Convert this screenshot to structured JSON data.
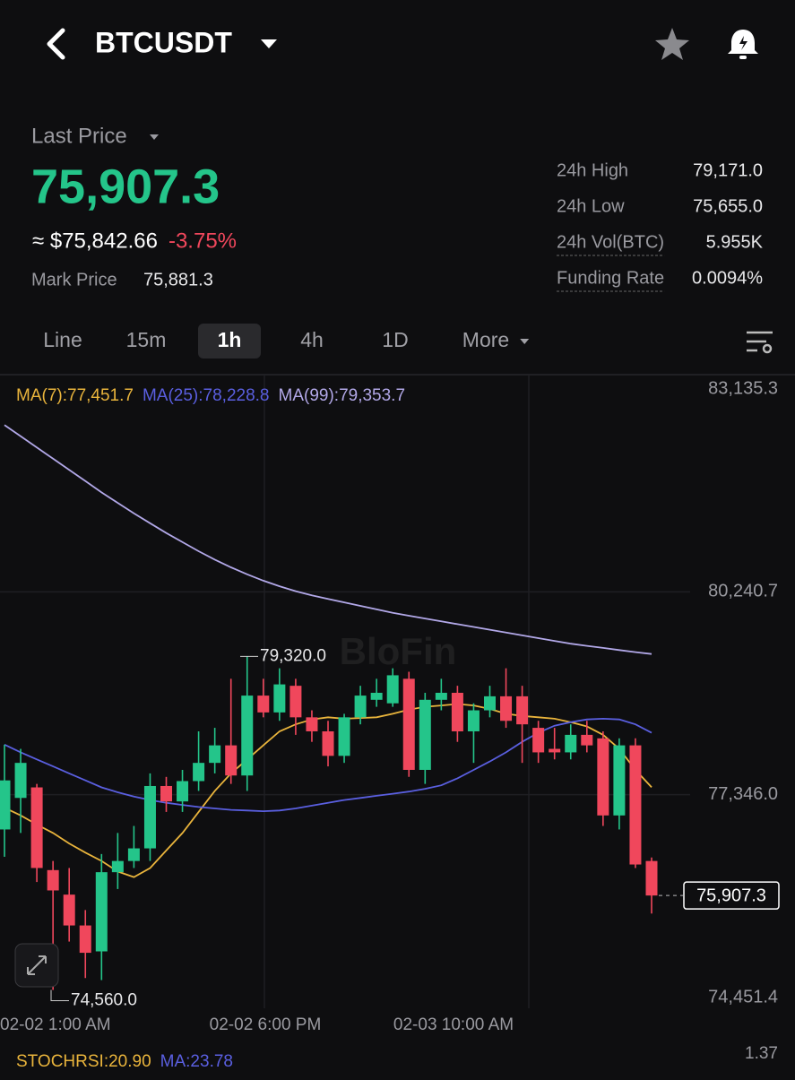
{
  "header": {
    "symbol": "BTCUSDT"
  },
  "price_panel": {
    "last_price_label": "Last Price",
    "last_price": "75,907.3",
    "usd_price": "≈ $75,842.66",
    "change": "-3.75%",
    "mark_price_label": "Mark Price",
    "mark_price": "75,881.3",
    "stats": [
      {
        "label": "24h High",
        "value": "79,171.0"
      },
      {
        "label": "24h Low",
        "value": "75,655.0"
      },
      {
        "label": "24h Vol(BTC)",
        "value": "5.955K"
      },
      {
        "label": "Funding Rate",
        "value": "0.0094%"
      }
    ]
  },
  "tabs": [
    {
      "label": "Line"
    },
    {
      "label": "15m"
    },
    {
      "label": "1h",
      "selected": true
    },
    {
      "label": "4h"
    },
    {
      "label": "1D"
    },
    {
      "label": "More"
    }
  ],
  "chart_data": {
    "type": "candlestick",
    "watermark": "BloFin",
    "up_color": "#24c58a",
    "down_color": "#f0475c",
    "ylim": [
      74451.4,
      83135.3
    ],
    "yticks": [
      {
        "value": 83135.3,
        "label": "83,135.3"
      },
      {
        "value": 80240.7,
        "label": "80,240.7"
      },
      {
        "value": 77346.0,
        "label": "77,346.0"
      },
      {
        "value": 74451.4,
        "label": "74,451.4"
      }
    ],
    "x_labels": [
      "02-02 1:00 AM",
      "02-02 6:00 PM",
      "02-03 10:00 AM"
    ],
    "candles": [
      {
        "open": 76850,
        "high": 78060,
        "low": 76460,
        "close": 77550
      },
      {
        "open": 77300,
        "high": 78000,
        "low": 76800,
        "close": 77800
      },
      {
        "open": 77450,
        "high": 77500,
        "low": 76100,
        "close": 76300
      },
      {
        "open": 76270,
        "high": 76400,
        "low": 74560,
        "close": 75980
      },
      {
        "open": 75920,
        "high": 76300,
        "low": 75250,
        "close": 75480
      },
      {
        "open": 75480,
        "high": 75700,
        "low": 74730,
        "close": 75090
      },
      {
        "open": 75110,
        "high": 76500,
        "low": 74700,
        "close": 76240
      },
      {
        "open": 76240,
        "high": 76800,
        "low": 76000,
        "close": 76400
      },
      {
        "open": 76400,
        "high": 76900,
        "low": 76300,
        "close": 76580
      },
      {
        "open": 76580,
        "high": 77650,
        "low": 76400,
        "close": 77470
      },
      {
        "open": 77470,
        "high": 77600,
        "low": 77100,
        "close": 77250
      },
      {
        "open": 77250,
        "high": 77700,
        "low": 77100,
        "close": 77540
      },
      {
        "open": 77540,
        "high": 78250,
        "low": 77400,
        "close": 77800
      },
      {
        "open": 77800,
        "high": 78300,
        "low": 77650,
        "close": 78050
      },
      {
        "open": 78050,
        "high": 79000,
        "low": 77500,
        "close": 77620
      },
      {
        "open": 77620,
        "high": 79320,
        "low": 77400,
        "close": 78760
      },
      {
        "open": 78760,
        "high": 79000,
        "low": 78450,
        "close": 78520
      },
      {
        "open": 78520,
        "high": 79150,
        "low": 78400,
        "close": 78920
      },
      {
        "open": 78900,
        "high": 79000,
        "low": 78200,
        "close": 78450
      },
      {
        "open": 78450,
        "high": 78550,
        "low": 78100,
        "close": 78250
      },
      {
        "open": 78250,
        "high": 78400,
        "low": 77750,
        "close": 77900
      },
      {
        "open": 77900,
        "high": 78500,
        "low": 77800,
        "close": 78450
      },
      {
        "open": 78450,
        "high": 78900,
        "low": 78350,
        "close": 78760
      },
      {
        "open": 78700,
        "high": 79000,
        "low": 78600,
        "close": 78800
      },
      {
        "open": 78650,
        "high": 79150,
        "low": 78600,
        "close": 79050
      },
      {
        "open": 79000,
        "high": 79100,
        "low": 77600,
        "close": 77700
      },
      {
        "open": 77700,
        "high": 78800,
        "low": 77500,
        "close": 78700
      },
      {
        "open": 78700,
        "high": 79000,
        "low": 78550,
        "close": 78800
      },
      {
        "open": 78800,
        "high": 78900,
        "low": 78100,
        "close": 78250
      },
      {
        "open": 78250,
        "high": 78650,
        "low": 77800,
        "close": 78550
      },
      {
        "open": 78550,
        "high": 78900,
        "low": 78450,
        "close": 78750
      },
      {
        "open": 78750,
        "high": 79150,
        "low": 78300,
        "close": 78400
      },
      {
        "open": 78750,
        "high": 78900,
        "low": 77800,
        "close": 78350
      },
      {
        "open": 78300,
        "high": 78400,
        "low": 77800,
        "close": 77950
      },
      {
        "open": 78000,
        "high": 78300,
        "low": 77850,
        "close": 77950
      },
      {
        "open": 77950,
        "high": 78350,
        "low": 77850,
        "close": 78200
      },
      {
        "open": 78200,
        "high": 78400,
        "low": 77950,
        "close": 78050
      },
      {
        "open": 78150,
        "high": 78250,
        "low": 76900,
        "close": 77050
      },
      {
        "open": 77050,
        "high": 78150,
        "low": 76850,
        "close": 78050
      },
      {
        "open": 78050,
        "high": 78150,
        "low": 76300,
        "close": 76350
      },
      {
        "open": 76400,
        "high": 76450,
        "low": 75650,
        "close": 75907.3
      }
    ],
    "series": [
      {
        "name": "MA(7):77,451.7",
        "color": "#e9b43c",
        "values": [
          77160,
          77050,
          76920,
          76800,
          76650,
          76520,
          76400,
          76250,
          76170,
          76300,
          76550,
          76800,
          77100,
          77400,
          77650,
          77850,
          78050,
          78250,
          78350,
          78420,
          78450,
          78430,
          78440,
          78450,
          78500,
          78560,
          78600,
          78620,
          78640,
          78620,
          78570,
          78500,
          78470,
          78450,
          78430,
          78380,
          78320,
          78200,
          78000,
          77700,
          77451.7
        ]
      },
      {
        "name": "MA(25):78,228.8",
        "color": "#5a5fe0",
        "values": [
          78060,
          77950,
          77850,
          77750,
          77650,
          77550,
          77450,
          77380,
          77320,
          77270,
          77230,
          77200,
          77170,
          77150,
          77130,
          77120,
          77110,
          77120,
          77150,
          77190,
          77230,
          77270,
          77300,
          77330,
          77360,
          77390,
          77430,
          77480,
          77580,
          77700,
          77820,
          77950,
          78100,
          78230,
          78330,
          78380,
          78420,
          78430,
          78420,
          78350,
          78228.8
        ]
      },
      {
        "name": "MA(99):79,353.7",
        "color": "#b2a8e8",
        "values": [
          82620,
          82460,
          82300,
          82140,
          81980,
          81820,
          81660,
          81510,
          81360,
          81220,
          81080,
          80950,
          80820,
          80700,
          80590,
          80490,
          80400,
          80320,
          80250,
          80190,
          80140,
          80090,
          80040,
          79990,
          79940,
          79900,
          79860,
          79820,
          79780,
          79740,
          79700,
          79660,
          79620,
          79580,
          79540,
          79500,
          79470,
          79440,
          79410,
          79380,
          79353.7
        ]
      }
    ],
    "annotations": [
      {
        "value": 79320,
        "label": "79,320.0"
      },
      {
        "value": 74560,
        "label": "74,560.0"
      }
    ],
    "last_price": {
      "value": 75907.3,
      "label": "75,907.3"
    },
    "indicator": {
      "name": "STOCHRSI:20.90",
      "ma": "MA:23.78",
      "scale": "1.37"
    }
  }
}
